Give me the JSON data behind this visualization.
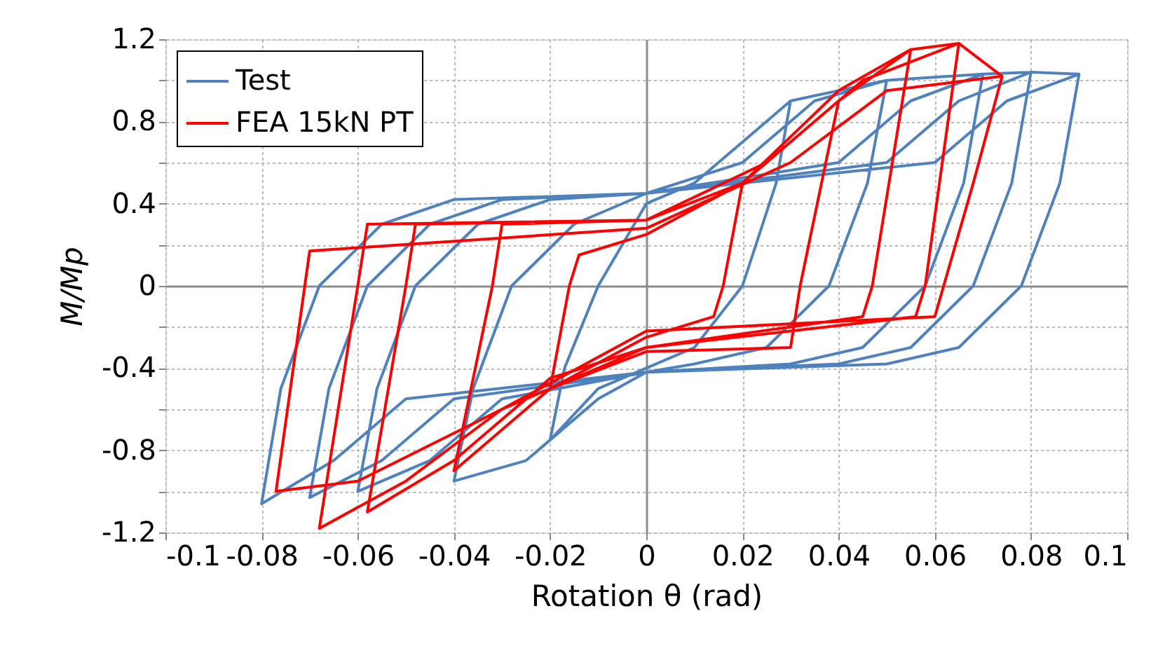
{
  "chart_data": {
    "type": "line",
    "xlabel": "Rotation θ (rad)",
    "ylabel": "M/Mp",
    "xlim": [
      -0.1,
      0.1
    ],
    "xticks": [
      -0.1,
      -0.08,
      -0.06,
      -0.04,
      -0.02,
      0,
      0.02,
      0.04,
      0.06,
      0.08,
      0.1
    ],
    "ylim": [
      -1.2,
      1.2
    ],
    "yticks": [
      -1.2,
      {
        "value": -1.0,
        "label": null
      },
      -0.8,
      {
        "value": -0.6,
        "label": null
      },
      -0.4,
      {
        "value": -0.2,
        "label": null
      },
      0,
      {
        "value": 0.2,
        "label": null
      },
      0.4,
      {
        "value": 0.6,
        "label": null
      },
      0.8,
      {
        "value": 1.0,
        "label": null
      },
      1.2
    ],
    "grid": true,
    "legend": "top left",
    "line_style": "solid",
    "marker": "none",
    "series": [
      {
        "name": "Test",
        "color": "#4f81bd",
        "x": [
          0.03,
          0.027,
          0.02,
          0.01,
          0,
          -0.01,
          -0.02,
          -0.017,
          -0.01,
          0,
          0.01,
          0.02,
          0.03,
          0.05,
          0.046,
          0.038,
          0.025,
          0.01,
          0,
          -0.01,
          -0.025,
          -0.04,
          -0.036,
          -0.028,
          -0.015,
          0,
          0.02,
          0.035,
          0.05,
          0.07,
          0.066,
          0.058,
          0.045,
          0.03,
          0,
          -0.03,
          -0.045,
          -0.06,
          -0.056,
          -0.048,
          -0.035,
          -0.02,
          0,
          0.04,
          0.055,
          0.07,
          0.08,
          0.076,
          0.068,
          0.055,
          0.04,
          0,
          -0.04,
          -0.055,
          -0.07,
          -0.066,
          -0.058,
          -0.045,
          -0.03,
          0,
          0.05,
          0.065,
          0.08,
          0.09,
          0.086,
          0.078,
          0.065,
          0.05,
          0,
          -0.05,
          -0.065,
          -0.08,
          -0.076,
          -0.068,
          -0.055,
          -0.04,
          0,
          0.06,
          0.075,
          0.09
        ],
        "values": [
          0.9,
          0.5,
          0,
          -0.3,
          -0.4,
          -0.5,
          -0.75,
          -0.4,
          0,
          0.4,
          0.5,
          0.7,
          0.9,
          1.0,
          0.5,
          0,
          -0.3,
          -0.38,
          -0.42,
          -0.55,
          -0.85,
          -0.95,
          -0.5,
          0,
          0.3,
          0.45,
          0.6,
          0.9,
          1.0,
          1.03,
          0.5,
          0,
          -0.3,
          -0.38,
          -0.42,
          -0.55,
          -0.85,
          -1.0,
          -0.5,
          0,
          0.3,
          0.42,
          0.45,
          0.6,
          0.9,
          1.03,
          1.04,
          0.5,
          0,
          -0.3,
          -0.38,
          -0.42,
          -0.55,
          -0.85,
          -1.03,
          -0.5,
          0,
          0.3,
          0.42,
          0.45,
          0.6,
          0.9,
          1.04,
          1.03,
          0.5,
          0,
          -0.3,
          -0.38,
          -0.42,
          -0.55,
          -0.85,
          -1.06,
          -0.5,
          0,
          0.3,
          0.42,
          0.45,
          0.6,
          0.9,
          1.03
        ]
      },
      {
        "name": "FEA 15kN PT",
        "color": "#ff0000",
        "x": [
          0.02,
          0.016,
          0.014,
          0,
          -0.02,
          -0.016,
          -0.014,
          0,
          0.02,
          0.04,
          0.032,
          0.03,
          0,
          -0.02,
          -0.04,
          -0.032,
          -0.03,
          0,
          0.02,
          0.04,
          0.055,
          0.047,
          0.045,
          0,
          -0.02,
          -0.04,
          -0.058,
          -0.05,
          -0.048,
          0,
          0.02,
          0.04,
          0.055,
          0.065,
          0.058,
          0.056,
          0,
          -0.03,
          -0.05,
          -0.068,
          -0.06,
          -0.058,
          0,
          0.025,
          0.045,
          0.065,
          0.074,
          0.068,
          0.06,
          0,
          -0.03,
          -0.06,
          -0.077,
          -0.07,
          0,
          0.03,
          0.05,
          0.074
        ],
        "values": [
          0.5,
          0,
          -0.15,
          -0.25,
          -0.5,
          0,
          0.15,
          0.25,
          0.5,
          0.9,
          0,
          -0.3,
          -0.32,
          -0.5,
          -0.9,
          0,
          0.3,
          0.32,
          0.5,
          0.9,
          1.15,
          0,
          -0.15,
          -0.3,
          -0.45,
          -0.85,
          -1.1,
          0,
          0.3,
          0.32,
          0.5,
          0.95,
          1.15,
          1.18,
          0,
          -0.15,
          -0.3,
          -0.6,
          -0.95,
          -1.18,
          0,
          0.3,
          0.32,
          0.6,
          1.0,
          1.18,
          1.02,
          0.5,
          -0.15,
          -0.22,
          -0.6,
          -0.95,
          -1.0,
          0.17,
          0.28,
          0.6,
          0.95,
          1.02
        ]
      }
    ]
  }
}
